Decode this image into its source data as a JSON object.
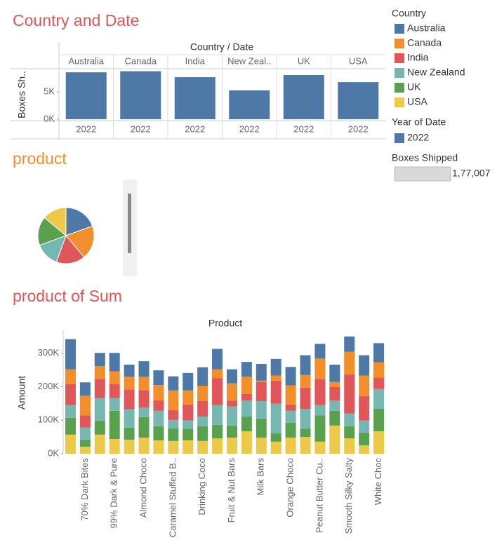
{
  "chart_data": [
    {
      "type": "bar",
      "title": "Country and Date",
      "header": "Country / Date",
      "categories": [
        "Australia",
        "Canada",
        "India",
        "New Zeal..",
        "UK",
        "USA"
      ],
      "x_labels": [
        "2022",
        "2022",
        "2022",
        "2022",
        "2022",
        "2022"
      ],
      "values": [
        8600,
        8800,
        7700,
        5300,
        8100,
        6800
      ],
      "color": "#4e79a7",
      "ylabel": "Boxes Sh..",
      "ylim": [
        0,
        9000
      ],
      "yticks": [
        {
          "value": 0,
          "label": "0K"
        },
        {
          "value": 5000,
          "label": "5K"
        }
      ]
    },
    {
      "type": "pie",
      "title": "product",
      "values": [
        70,
        70,
        60,
        50,
        60,
        50
      ],
      "colors": [
        "#4e79a7",
        "#f28e2b",
        "#e15759",
        "#76b7b2",
        "#59a14f",
        "#edc948"
      ]
    },
    {
      "type": "stacked_bar",
      "title": "product  of Sum",
      "header": "Product",
      "ylabel": "Amount",
      "categories": [
        null,
        "70% Dark Bites",
        null,
        "99% Dark & Pure",
        null,
        "Almond Choco",
        null,
        "Caramel Stuffed B..",
        null,
        "Drinking Coco",
        null,
        "Fruit & Nut Bars",
        null,
        "Milk Bars",
        null,
        "Orange Choco",
        null,
        "Peanut Butter Cu..",
        null,
        "Smooth Silky Salty",
        null,
        "White Choc"
      ],
      "series": [
        {
          "name": "Australia",
          "color": "#4e79a7",
          "values": [
            90000,
            40000,
            40000,
            55000,
            36000,
            46000,
            44000,
            42000,
            52000,
            55000,
            61000,
            42000,
            44000,
            50000,
            50000,
            55000,
            59000,
            44000,
            52000,
            46000,
            61000,
            57000
          ]
        },
        {
          "name": "Canada",
          "color": "#f28e2b",
          "values": [
            44000,
            59000,
            38000,
            38000,
            38000,
            40000,
            46000,
            59000,
            42000,
            46000,
            27000,
            52000,
            52000,
            4000,
            15000,
            57000,
            38000,
            61000,
            15000,
            67000,
            61000,
            46000
          ]
        },
        {
          "name": "India",
          "color": "#e15759",
          "values": [
            63000,
            36000,
            57000,
            42000,
            59000,
            52000,
            31000,
            29000,
            48000,
            46000,
            80000,
            17000,
            19000,
            57000,
            69000,
            19000,
            63000,
            78000,
            40000,
            117000,
            73000,
            34000
          ]
        },
        {
          "name": "New Zealand",
          "color": "#76b7b2",
          "values": [
            38000,
            36000,
            67000,
            38000,
            55000,
            29000,
            46000,
            25000,
            25000,
            29000,
            59000,
            57000,
            48000,
            52000,
            88000,
            36000,
            59000,
            31000,
            31000,
            38000,
            36000,
            59000
          ]
        },
        {
          "name": "UK",
          "color": "#59a14f",
          "values": [
            50000,
            21000,
            42000,
            84000,
            36000,
            61000,
            42000,
            38000,
            34000,
            44000,
            40000,
            36000,
            44000,
            57000,
            25000,
            44000,
            25000,
            78000,
            44000,
            36000,
            38000,
            67000
          ]
        },
        {
          "name": "USA",
          "color": "#edc948",
          "values": [
            57000,
            21000,
            57000,
            44000,
            42000,
            48000,
            40000,
            38000,
            40000,
            38000,
            46000,
            48000,
            67000,
            48000,
            36000,
            48000,
            50000,
            36000,
            84000,
            46000,
            25000,
            67000
          ]
        }
      ],
      "ylim": [
        0,
        360000
      ],
      "yticks": [
        {
          "value": 0,
          "label": "0K"
        },
        {
          "value": 100000,
          "label": "100K"
        },
        {
          "value": 200000,
          "label": "200K"
        },
        {
          "value": 300000,
          "label": "300K"
        }
      ]
    }
  ],
  "legend": {
    "title": "Country"
  },
  "year_legend": {
    "title": "Year of Date",
    "items": [
      {
        "name": "2022",
        "color": "#4e79a7"
      }
    ]
  },
  "filter": {
    "title": "Boxes Shipped",
    "value_label": "1,77,007"
  }
}
